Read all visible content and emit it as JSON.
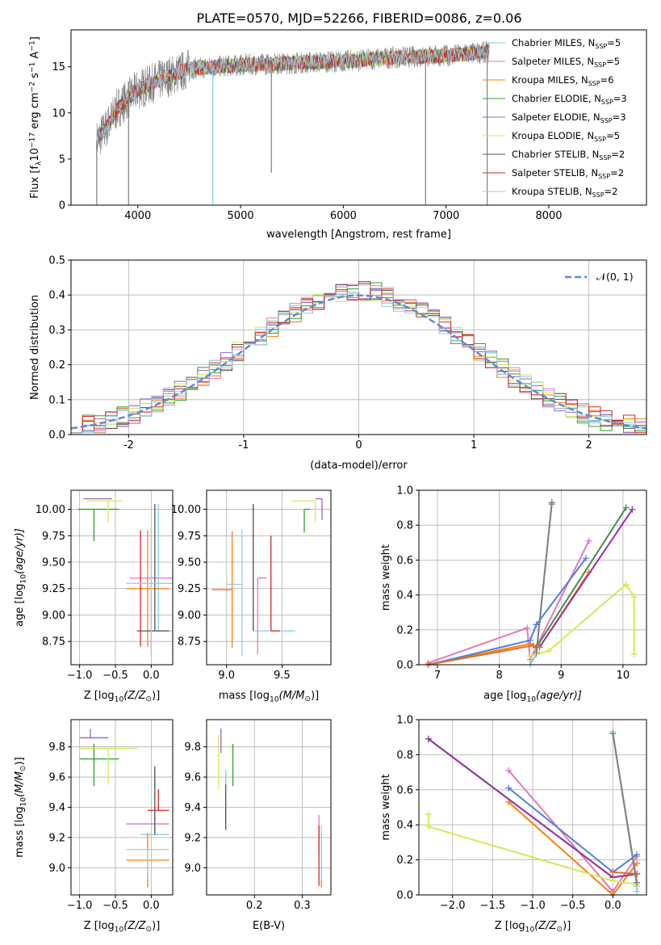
{
  "figure": {
    "title": "PLATE=0570, MJD=52266, FIBERID=0086, z=0.06"
  },
  "model_names": [
    "Chabrier MILES",
    "Salpeter MILES",
    "Kroupa MILES",
    "Chabrier ELODIE",
    "Salpeter ELODIE",
    "Kroupa ELODIE",
    "Chabrier STELIB",
    "Salpeter STELIB",
    "Kroupa STELIB"
  ],
  "n_ssp": [
    5,
    5,
    6,
    3,
    3,
    5,
    2,
    2,
    2
  ],
  "colors": {
    "data": "#808080",
    "models": [
      "#7fd3e0",
      "#e377c2",
      "#ff7f0e",
      "#2ca02c",
      "#9467bd",
      "#d4e85a",
      "#555555",
      "#d62728",
      "#9ecae1"
    ],
    "age_weight_lines": [
      "#7ecfd6",
      "#e377c2",
      "#ff7f0e",
      "#4a8a4a",
      "#9932a8",
      "#d4e85a",
      "#5080e0",
      "#e07020",
      "#808080"
    ],
    "grid": "#b0b0b0",
    "gauss": "#5b8dd6"
  },
  "chart_data": [
    {
      "id": "spectrum",
      "type": "line",
      "xlabel": "wavelength [Angstrom, rest frame]",
      "ylabel": "Flux [f",
      "ylabel_sub": "λ",
      "ylabel_rest": "10",
      "ylabel_exp": "−17",
      "ylabel_units": " erg cm",
      "ylabel_exp2": "−2",
      "ylabel_units2": " s",
      "ylabel_exp3": "−1",
      "ylabel_units3": " A",
      "ylabel_exp4": "−1",
      "ylabel_end": "]",
      "xlim": [
        3350,
        8950
      ],
      "ylim": [
        0,
        19
      ],
      "xticks": [
        4000,
        5000,
        6000,
        7000,
        8000
      ],
      "yticks": [
        0,
        5,
        10,
        15
      ],
      "continuum": [
        [
          3600,
          7.0
        ],
        [
          3700,
          8.5
        ],
        [
          3800,
          10.5
        ],
        [
          3900,
          11.5
        ],
        [
          4000,
          12.5
        ],
        [
          4200,
          13.5
        ],
        [
          4500,
          14.8
        ],
        [
          5000,
          15.2
        ],
        [
          5500,
          15.4
        ],
        [
          6000,
          15.6
        ],
        [
          6500,
          16.0
        ],
        [
          7000,
          16.2
        ],
        [
          7400,
          16.6
        ]
      ],
      "dips": [
        [
          3600,
          0.0
        ],
        [
          3910,
          0.0
        ],
        [
          4730,
          0.0
        ],
        [
          5300,
          3.5
        ],
        [
          6800,
          0.0
        ],
        [
          7400,
          0.0
        ]
      ],
      "legend_label_prefix": "N",
      "legend_label_sub": "SSP"
    },
    {
      "id": "residuals",
      "type": "histogram",
      "xlabel": "(data-model)/error",
      "ylabel": "Normed distribution",
      "xlim": [
        -2.5,
        2.5
      ],
      "ylim": [
        0,
        0.5
      ],
      "xticks": [
        -2,
        -1,
        0,
        1,
        2
      ],
      "yticks": [
        0.0,
        0.1,
        0.2,
        0.3,
        0.4,
        0.5
      ],
      "bin_width": 0.1,
      "gauss_label": "𝒩(0, 1)",
      "peaks": [
        0.4,
        0.43,
        0.42,
        0.44,
        0.48,
        0.45,
        0.44,
        0.41,
        0.39
      ]
    },
    {
      "id": "age_Z",
      "type": "errorbar",
      "xlabel": "Z [log",
      "xlabel_sub": "10",
      "xlabel_rest": "(Z/Z",
      "xlabel_sub2": "⊙",
      "xlabel_end": ")]",
      "ylabel": "age  [log",
      "ylabel_sub": "10",
      "ylabel_rest": "(age/yr)]",
      "xlim": [
        -1.12,
        0.3
      ],
      "ylim": [
        8.53,
        10.18
      ],
      "xticks": [
        -1.0,
        -0.5,
        0.0
      ],
      "xticklabels": [
        "−1.0",
        "−0.5",
        "0.0"
      ],
      "yticks": [
        8.75,
        9.0,
        9.25,
        9.5,
        9.75,
        10.0
      ],
      "yticklabels": [
        "8.75",
        "9.00",
        "9.25",
        "9.50",
        "9.75",
        "10.00"
      ],
      "points": [
        {
          "x": 0.1,
          "y": 8.85,
          "xerr": [
            0.15,
            0.2
          ],
          "yerr": [
            0.0,
            1.2
          ],
          "c": 0
        },
        {
          "x": 0.0,
          "y": 9.35,
          "xerr": [
            0.3,
            0.3
          ],
          "yerr": [
            0.72,
            0.0
          ],
          "c": 1
        },
        {
          "x": -0.05,
          "y": 9.25,
          "xerr": [
            0.3,
            0.3
          ],
          "yerr": [
            0.55,
            0.55
          ],
          "c": 2
        },
        {
          "x": -0.8,
          "y": 10.0,
          "xerr": [
            0.22,
            0.35
          ],
          "yerr": [
            0.3,
            0.0
          ],
          "c": 3
        },
        {
          "x": -0.75,
          "y": 10.1,
          "xerr": [
            0.2,
            0.2
          ],
          "yerr": [
            0.0,
            0.0
          ],
          "c": 4
        },
        {
          "x": -0.6,
          "y": 10.08,
          "xerr": [
            0.3,
            0.2
          ],
          "yerr": [
            0.2,
            0.0
          ],
          "c": 5
        },
        {
          "x": 0.05,
          "y": 8.85,
          "xerr": [
            0.25,
            0.2
          ],
          "yerr": [
            0.0,
            1.2
          ],
          "c": 6
        },
        {
          "x": -0.15,
          "y": 9.25,
          "xerr": [
            0.0,
            0.0
          ],
          "yerr": [
            0.55,
            0.55
          ],
          "c": 7
        },
        {
          "x": 0.0,
          "y": 9.3,
          "xerr": [
            0.35,
            0.3
          ],
          "yerr": [
            0.68,
            0.52
          ],
          "c": 8
        }
      ]
    },
    {
      "id": "age_mass",
      "type": "errorbar",
      "xlabel": "mass [log",
      "xlabel_sub": "10",
      "xlabel_rest": "(M/M",
      "xlabel_sub2": "⊙",
      "xlabel_end": ")]",
      "xlim": [
        8.82,
        9.94
      ],
      "ylim": [
        8.53,
        10.18
      ],
      "xticks": [
        9.0,
        9.5
      ],
      "xticklabels": [
        "9.0",
        "9.5"
      ],
      "yticks": [
        8.75,
        9.0,
        9.25,
        9.5,
        9.75,
        10.0
      ],
      "yticklabels": [
        "8.75",
        "9.00",
        "9.25",
        "9.50",
        "9.75",
        "10.00"
      ],
      "points": [
        {
          "x": 9.24,
          "y": 8.85,
          "xerr": [
            0.0,
            0.38
          ],
          "yerr": [
            0.0,
            1.2
          ],
          "c": 0
        },
        {
          "x": 9.28,
          "y": 9.35,
          "xerr": [
            0.0,
            0.08
          ],
          "yerr": [
            0.72,
            0.0
          ],
          "c": 1
        },
        {
          "x": 9.05,
          "y": 9.24,
          "xerr": [
            0.18,
            0.0
          ],
          "yerr": [
            0.55,
            0.55
          ],
          "c": 2
        },
        {
          "x": 9.7,
          "y": 10.0,
          "xerr": [
            0.0,
            0.05
          ],
          "yerr": [
            0.22,
            0.0
          ],
          "c": 3
        },
        {
          "x": 9.86,
          "y": 10.1,
          "xerr": [
            0.06,
            0.0
          ],
          "yerr": [
            0.2,
            0.0
          ],
          "c": 4
        },
        {
          "x": 9.8,
          "y": 10.08,
          "xerr": [
            0.22,
            0.0
          ],
          "yerr": [
            0.2,
            0.0
          ],
          "c": 5
        },
        {
          "x": 9.24,
          "y": 8.85,
          "xerr": [
            0.0,
            0.0
          ],
          "yerr": [
            0.0,
            1.2
          ],
          "c": 6
        },
        {
          "x": 9.4,
          "y": 8.85,
          "xerr": [
            0.0,
            0.08
          ],
          "yerr": [
            0.0,
            0.9
          ],
          "c": 7
        },
        {
          "x": 9.14,
          "y": 9.29,
          "xerr": [
            0.14,
            0.0
          ],
          "yerr": [
            0.68,
            0.52
          ],
          "c": 8
        }
      ]
    },
    {
      "id": "weight_age",
      "type": "line",
      "xlabel": "age  [log",
      "xlabel_sub": "10",
      "xlabel_rest": "(age/yr)]",
      "ylabel": "mass weight",
      "xlim": [
        6.7,
        10.38
      ],
      "ylim": [
        0,
        1.0
      ],
      "xticks": [
        7,
        8,
        9,
        10
      ],
      "yticks": [
        0.0,
        0.2,
        0.4,
        0.6,
        0.8,
        1.0
      ],
      "series": [
        {
          "c": 0,
          "x": [
            8.5,
            8.6,
            8.85,
            8.85
          ],
          "y": [
            0.0,
            0.06,
            0.93,
            0.93
          ]
        },
        {
          "c": 1,
          "x": [
            6.85,
            8.45,
            8.5,
            9.45
          ],
          "y": [
            0.01,
            0.21,
            0.03,
            0.71
          ]
        },
        {
          "c": 2,
          "x": [
            6.85,
            8.5,
            8.65,
            9.45
          ],
          "y": [
            0.0,
            0.12,
            0.1,
            0.53
          ]
        },
        {
          "c": 3,
          "x": [
            8.6,
            10.05
          ],
          "y": [
            0.1,
            0.9
          ]
        },
        {
          "c": 4,
          "x": [
            8.65,
            10.15
          ],
          "y": [
            0.1,
            0.89
          ]
        },
        {
          "c": 5,
          "x": [
            8.5,
            8.8,
            10.05,
            10.18,
            10.18
          ],
          "y": [
            0.05,
            0.08,
            0.46,
            0.39,
            0.06
          ]
        },
        {
          "c": 6,
          "x": [
            6.85,
            8.5,
            8.6,
            9.4
          ],
          "y": [
            0.0,
            0.14,
            0.23,
            0.61
          ]
        },
        {
          "c": 7,
          "x": [
            6.85,
            8.55,
            8.65
          ],
          "y": [
            0.0,
            0.11,
            0.1
          ]
        },
        {
          "c": 8,
          "x": [
            8.6,
            8.85,
            8.85
          ],
          "y": [
            0.07,
            0.93,
            0.92
          ]
        }
      ]
    },
    {
      "id": "mass_Z",
      "type": "errorbar",
      "xlabel": "Z [log",
      "xlabel_sub": "10",
      "xlabel_rest": "(Z/Z",
      "xlabel_sub2": "⊙",
      "xlabel_end": ")]",
      "ylabel": "mass [log",
      "ylabel_sub": "10",
      "ylabel_rest": "(M/M",
      "ylabel_sub2": "⊙",
      "ylabel_end": ")]",
      "xlim": [
        -1.12,
        0.3
      ],
      "ylim": [
        8.82,
        9.98
      ],
      "xticks": [
        -1.0,
        -0.5,
        0.0
      ],
      "xticklabels": [
        "−1.0",
        "−0.5",
        "0.0"
      ],
      "yticks": [
        9.0,
        9.2,
        9.4,
        9.6,
        9.8
      ],
      "yticklabels": [
        "9.0",
        "9.2",
        "9.4",
        "9.6",
        "9.8"
      ],
      "points": [
        {
          "x": 0.05,
          "y": 9.22,
          "xerr": [
            0.2,
            0.2
          ],
          "yerr": [
            0.0,
            0.45
          ],
          "c": 0
        },
        {
          "x": -0.05,
          "y": 9.29,
          "xerr": [
            0.3,
            0.3
          ],
          "yerr": [
            0.0,
            0.0
          ],
          "c": 1
        },
        {
          "x": -0.05,
          "y": 9.05,
          "xerr": [
            0.3,
            0.3
          ],
          "yerr": [
            0.18,
            0.18
          ],
          "c": 2
        },
        {
          "x": -0.8,
          "y": 9.72,
          "xerr": [
            0.2,
            0.35
          ],
          "yerr": [
            0.18,
            0.1
          ],
          "c": 3
        },
        {
          "x": -0.85,
          "y": 9.86,
          "xerr": [
            0.15,
            0.25
          ],
          "yerr": [
            0.0,
            0.06
          ],
          "c": 4
        },
        {
          "x": -0.6,
          "y": 9.79,
          "xerr": [
            0.4,
            0.4
          ],
          "yerr": [
            0.24,
            0.0
          ],
          "c": 5
        },
        {
          "x": 0.05,
          "y": 9.22,
          "xerr": [
            0.0,
            0.0
          ],
          "yerr": [
            0.0,
            0.45
          ],
          "c": 6
        },
        {
          "x": 0.1,
          "y": 9.38,
          "xerr": [
            0.15,
            0.15
          ],
          "yerr": [
            0.0,
            0.14
          ],
          "c": 7
        },
        {
          "x": -0.05,
          "y": 9.12,
          "xerr": [
            0.3,
            0.3
          ],
          "yerr": [
            0.18,
            0.0
          ],
          "c": 8
        }
      ]
    },
    {
      "id": "mass_ebv",
      "type": "errorbar",
      "xlabel": "E(B-V)",
      "xlim": [
        0.1,
        0.36
      ],
      "ylim": [
        8.82,
        9.98
      ],
      "xticks": [
        0.2,
        0.3
      ],
      "xticklabels": [
        "0.2",
        "0.3"
      ],
      "yticks": [
        9.0,
        9.2,
        9.4,
        9.6,
        9.8
      ],
      "yticklabels": [
        "9.0",
        "9.2",
        "9.4",
        "9.6",
        "9.8"
      ],
      "points": [
        {
          "x": 0.14,
          "y": 9.45,
          "yerr": [
            0.2,
            0.2
          ],
          "c": 0
        },
        {
          "x": 0.335,
          "y": 9.2,
          "yerr": [
            0.1,
            0.15
          ],
          "c": 1
        },
        {
          "x": 0.34,
          "y": 9.05,
          "yerr": [
            0.18,
            0.18
          ],
          "c": 2
        },
        {
          "x": 0.155,
          "y": 9.68,
          "yerr": [
            0.14,
            0.14
          ],
          "c": 3
        },
        {
          "x": 0.13,
          "y": 9.84,
          "yerr": [
            0.08,
            0.08
          ],
          "c": 4
        },
        {
          "x": 0.125,
          "y": 9.7,
          "yerr": [
            0.18,
            0.18
          ],
          "c": 5
        },
        {
          "x": 0.14,
          "y": 9.4,
          "yerr": [
            0.15,
            0.15
          ],
          "c": 6
        },
        {
          "x": 0.335,
          "y": 9.08,
          "yerr": [
            0.2,
            0.2
          ],
          "c": 7
        },
        {
          "x": 0.34,
          "y": 9.1,
          "yerr": [
            0.18,
            0.18
          ],
          "c": 8
        }
      ]
    },
    {
      "id": "weight_Z",
      "type": "line",
      "xlabel": "Z [log",
      "xlabel_sub": "10",
      "xlabel_rest": "(Z/Z",
      "xlabel_sub2": "⊙",
      "xlabel_end": ")]",
      "ylabel": "mass weight",
      "xlim": [
        -2.42,
        0.42
      ],
      "ylim": [
        0,
        1.0
      ],
      "xticks": [
        -2.0,
        -1.5,
        -1.0,
        -0.5,
        0.0
      ],
      "xticklabels": [
        "−2.0",
        "−1.5",
        "−1.0",
        "−0.5",
        "0.0"
      ],
      "yticks": [
        0.0,
        0.2,
        0.4,
        0.6,
        0.8,
        1.0
      ],
      "series": [
        {
          "c": 0,
          "x": [
            0.0,
            0.3,
            0.3
          ],
          "y": [
            0.93,
            0.05,
            0.02
          ]
        },
        {
          "c": 1,
          "x": [
            -1.3,
            0.0,
            0.3
          ],
          "y": [
            0.71,
            0.02,
            0.22
          ]
        },
        {
          "c": 2,
          "x": [
            -1.3,
            0.0,
            0.3
          ],
          "y": [
            0.53,
            0.0,
            0.18
          ]
        },
        {
          "c": 3,
          "x": [
            -2.3,
            0.0,
            0.3
          ],
          "y": [
            0.89,
            0.1,
            0.12
          ]
        },
        {
          "c": 4,
          "x": [
            -2.3,
            0.0,
            0.3
          ],
          "y": [
            0.89,
            0.1,
            0.12
          ]
        },
        {
          "c": 5,
          "x": [
            -2.3,
            -2.3,
            0.0,
            0.3
          ],
          "y": [
            0.46,
            0.39,
            0.08,
            0.06
          ]
        },
        {
          "c": 6,
          "x": [
            -1.3,
            0.0,
            0.3
          ],
          "y": [
            0.61,
            0.13,
            0.23
          ]
        },
        {
          "c": 7,
          "x": [
            0.0,
            0.3
          ],
          "y": [
            0.13,
            0.12
          ]
        },
        {
          "c": 8,
          "x": [
            0.0,
            0.3
          ],
          "y": [
            0.92,
            0.07
          ]
        }
      ]
    }
  ]
}
